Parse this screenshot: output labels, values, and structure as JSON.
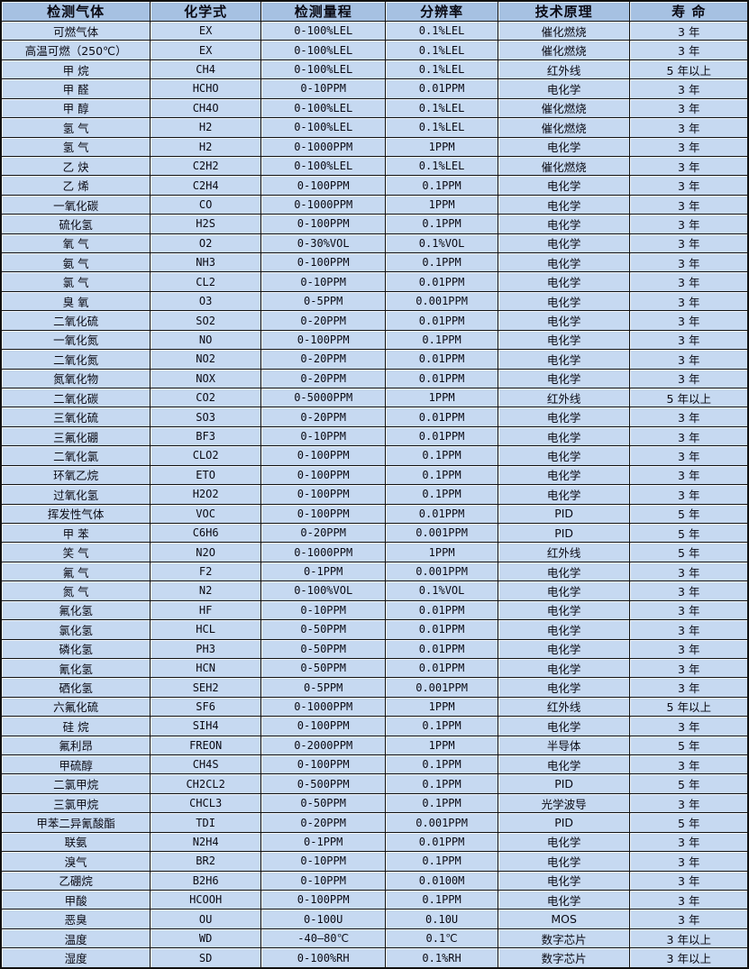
{
  "colors": {
    "header_bg": "#a6c1e2",
    "row_bg": "#c6d9f1",
    "border": "#111111"
  },
  "table": {
    "headers": [
      "检测气体",
      "化学式",
      "检测量程",
      "分辨率",
      "技术原理",
      "寿 命"
    ],
    "rows": [
      [
        "可燃气体",
        "EX",
        "0-100%LEL",
        "0.1%LEL",
        "催化燃烧",
        "3 年"
      ],
      [
        "高温可燃（250℃）",
        "EX",
        "0-100%LEL",
        "0.1%LEL",
        "催化燃烧",
        "3 年"
      ],
      [
        "甲 烷",
        "CH4",
        "0-100%LEL",
        "0.1%LEL",
        "红外线",
        "5 年以上"
      ],
      [
        "甲 醛",
        "HCHO",
        "0-10PPM",
        "0.01PPM",
        "电化学",
        "3 年"
      ],
      [
        "甲 醇",
        "CH4O",
        "0-100%LEL",
        "0.1%LEL",
        "催化燃烧",
        "3 年"
      ],
      [
        "氢 气",
        "H2",
        "0-100%LEL",
        "0.1%LEL",
        "催化燃烧",
        "3 年"
      ],
      [
        "氢 气",
        "H2",
        "0-1000PPM",
        "1PPM",
        "电化学",
        "3 年"
      ],
      [
        "乙 炔",
        "C2H2",
        "0-100%LEL",
        "0.1%LEL",
        "催化燃烧",
        "3 年"
      ],
      [
        "乙 烯",
        "C2H4",
        "0-100PPM",
        "0.1PPM",
        "电化学",
        "3 年"
      ],
      [
        "一氧化碳",
        "CO",
        "0-1000PPM",
        "1PPM",
        "电化学",
        "3 年"
      ],
      [
        "硫化氢",
        "H2S",
        "0-100PPM",
        "0.1PPM",
        "电化学",
        "3 年"
      ],
      [
        "氧 气",
        "O2",
        "0-30%VOL",
        "0.1%VOL",
        "电化学",
        "3 年"
      ],
      [
        "氨 气",
        "NH3",
        "0-100PPM",
        "0.1PPM",
        "电化学",
        "3 年"
      ],
      [
        "氯 气",
        "CL2",
        "0-10PPM",
        "0.01PPM",
        "电化学",
        "3 年"
      ],
      [
        "臭 氧",
        "O3",
        "0-5PPM",
        "0.001PPM",
        "电化学",
        "3 年"
      ],
      [
        "二氧化硫",
        "SO2",
        "0-20PPM",
        "0.01PPM",
        "电化学",
        "3 年"
      ],
      [
        "一氧化氮",
        "NO",
        "0-100PPM",
        "0.1PPM",
        "电化学",
        "3 年"
      ],
      [
        "二氧化氮",
        "NO2",
        "0-20PPM",
        "0.01PPM",
        "电化学",
        "3 年"
      ],
      [
        "氮氧化物",
        "NOX",
        "0-20PPM",
        "0.01PPM",
        "电化学",
        "3 年"
      ],
      [
        "二氧化碳",
        "CO2",
        "0-5000PPM",
        "1PPM",
        "红外线",
        "5 年以上"
      ],
      [
        "三氧化硫",
        "SO3",
        "0-20PPM",
        "0.01PPM",
        "电化学",
        "3 年"
      ],
      [
        "三氟化硼",
        "BF3",
        "0-10PPM",
        "0.01PPM",
        "电化学",
        "3 年"
      ],
      [
        "二氧化氯",
        "CLO2",
        "0-100PPM",
        "0.1PPM",
        "电化学",
        "3 年"
      ],
      [
        "环氧乙烷",
        "ETO",
        "0-100PPM",
        "0.1PPM",
        "电化学",
        "3 年"
      ],
      [
        "过氧化氢",
        "H2O2",
        "0-100PPM",
        "0.1PPM",
        "电化学",
        "3 年"
      ],
      [
        "挥发性气体",
        "VOC",
        "0-100PPM",
        "0.01PPM",
        "PID",
        "5 年"
      ],
      [
        "甲 苯",
        "C6H6",
        "0-20PPM",
        "0.001PPM",
        "PID",
        "5 年"
      ],
      [
        "笑 气",
        "N2O",
        "0-1000PPM",
        "1PPM",
        "红外线",
        "5 年"
      ],
      [
        "氟 气",
        "F2",
        "0-1PPM",
        "0.001PPM",
        "电化学",
        "3 年"
      ],
      [
        "氮 气",
        "N2",
        "0-100%VOL",
        "0.1%VOL",
        "电化学",
        "3 年"
      ],
      [
        "氟化氢",
        "HF",
        "0-10PPM",
        "0.01PPM",
        "电化学",
        "3 年"
      ],
      [
        "氯化氢",
        "HCL",
        "0-50PPM",
        "0.01PPM",
        "电化学",
        "3 年"
      ],
      [
        "磷化氢",
        "PH3",
        "0-50PPM",
        "0.01PPM",
        "电化学",
        "3 年"
      ],
      [
        "氰化氢",
        "HCN",
        "0-50PPM",
        "0.01PPM",
        "电化学",
        "3 年"
      ],
      [
        "硒化氢",
        "SEH2",
        "0-5PPM",
        "0.001PPM",
        "电化学",
        "3 年"
      ],
      [
        "六氟化硫",
        "SF6",
        "0-1000PPM",
        "1PPM",
        "红外线",
        "5 年以上"
      ],
      [
        "硅 烷",
        "SIH4",
        "0-100PPM",
        "0.1PPM",
        "电化学",
        "3 年"
      ],
      [
        "氟利昂",
        "FREON",
        "0-2000PPM",
        "1PPM",
        "半导体",
        "5 年"
      ],
      [
        "甲硫醇",
        "CH4S",
        "0-100PPM",
        "0.1PPM",
        "电化学",
        "3 年"
      ],
      [
        "二氯甲烷",
        "CH2CL2",
        "0-500PPM",
        "0.1PPM",
        "PID",
        "5 年"
      ],
      [
        "三氯甲烷",
        "CHCL3",
        "0-50PPM",
        "0.1PPM",
        "光学波导",
        "3 年"
      ],
      [
        "甲苯二异氰酸酯",
        "TDI",
        "0-20PPM",
        "0.001PPM",
        "PID",
        "5 年"
      ],
      [
        "联氨",
        "N2H4",
        "0-1PPM",
        "0.01PPM",
        "电化学",
        "3 年"
      ],
      [
        "溴气",
        "BR2",
        "0-10PPM",
        "0.1PPM",
        "电化学",
        "3 年"
      ],
      [
        "乙硼烷",
        "B2H6",
        "0-10PPM",
        "0.0100M",
        "电化学",
        "3 年"
      ],
      [
        "甲酸",
        "HCOOH",
        "0-100PPM",
        "0.1PPM",
        "电化学",
        "3 年"
      ],
      [
        "恶臭",
        "OU",
        "0-100U",
        "0.10U",
        "MOS",
        "3 年"
      ],
      [
        "温度",
        "WD",
        "-40—80℃",
        "0.1℃",
        "数字芯片",
        "3 年以上"
      ],
      [
        "湿度",
        "SD",
        "0-100%RH",
        "0.1%RH",
        "数字芯片",
        "3 年以上"
      ]
    ]
  }
}
